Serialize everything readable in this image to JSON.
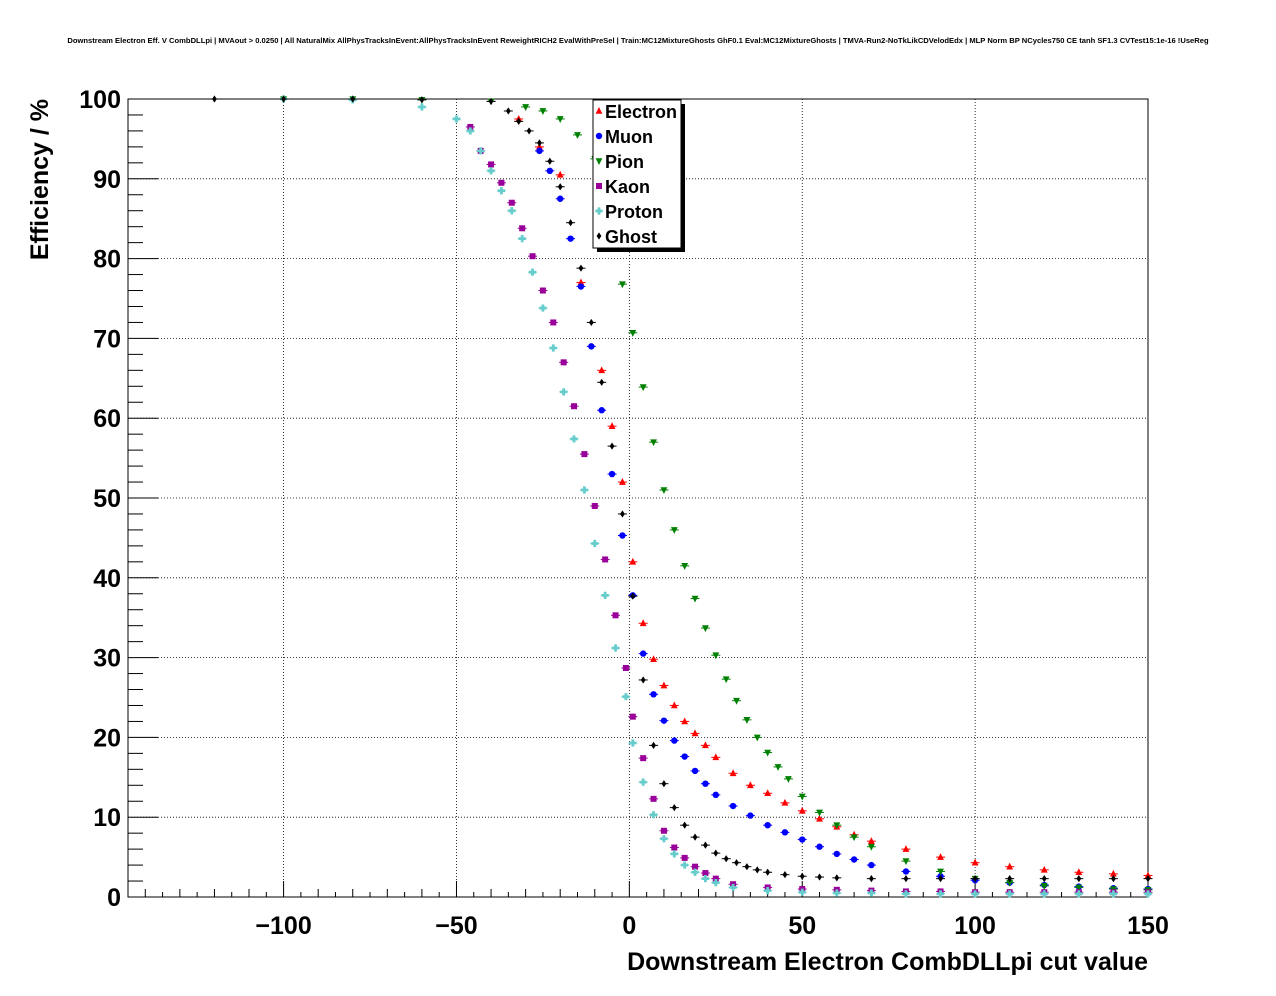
{
  "chart_data": {
    "type": "scatter",
    "title": "Downstream Electron Eff. V CombDLLpi | MVAout > 0.0250 | All NaturalMix AllPhysTracksInEvent:AllPhysTracksInEvent ReweightRICH2 EvalWithPreSel | Train:MC12MixtureGhosts GhF0.1 Eval:MC12MixtureGhosts | TMVA-Run2-NoTkLikCDVelodEdx | MLP Norm BP NCycles750 CE tanh SF1.3 CVTest15:1e-16 !UseReg",
    "xlabel": "Downstream Electron CombDLLpi cut value",
    "ylabel": "Efficiency / %",
    "xlim": [
      -145,
      150
    ],
    "ylim": [
      0,
      100
    ],
    "xticks": [
      -100,
      -50,
      0,
      50,
      100,
      150
    ],
    "xtick_labels": [
      "−100",
      "−50",
      "0",
      "50",
      "100",
      "150"
    ],
    "yticks": [
      0,
      10,
      20,
      30,
      40,
      50,
      60,
      70,
      80,
      90,
      100
    ],
    "ytick_labels": [
      "0",
      "10",
      "20",
      "30",
      "40",
      "50",
      "60",
      "70",
      "80",
      "90",
      "100"
    ],
    "grid": true,
    "legend_position": "top-center",
    "series": [
      {
        "name": "Electron",
        "color": "#ff0000",
        "marker": "triangle-up",
        "x": [
          -32,
          -26,
          -20,
          -14,
          -8,
          -5,
          -2,
          1,
          4,
          7,
          10,
          13,
          16,
          19,
          22,
          25,
          30,
          35,
          40,
          45,
          50,
          55,
          60,
          65,
          70,
          80,
          90,
          100,
          110,
          120,
          130,
          140,
          150
        ],
        "y": [
          97.5,
          94,
          90.5,
          77,
          66,
          59,
          52,
          42,
          34.3,
          29.8,
          26.5,
          24,
          22,
          20.5,
          19,
          17.5,
          15.5,
          14,
          13,
          11.8,
          10.8,
          9.8,
          8.8,
          7.8,
          7,
          6,
          5,
          4.3,
          3.8,
          3.4,
          3.1,
          2.9,
          2.7
        ]
      },
      {
        "name": "Muon",
        "color": "#0000ff",
        "marker": "circle",
        "x": [
          -26,
          -23,
          -20,
          -17,
          -14,
          -11,
          -8,
          -5,
          -2,
          1,
          4,
          7,
          10,
          13,
          16,
          19,
          22,
          25,
          30,
          35,
          40,
          45,
          50,
          55,
          60,
          65,
          70,
          80,
          90,
          100,
          110,
          120,
          130,
          140,
          150
        ],
        "y": [
          93.5,
          91,
          87.5,
          82.5,
          76.5,
          69,
          61,
          53,
          45.3,
          37.8,
          30.5,
          25.4,
          22.1,
          19.6,
          17.6,
          15.8,
          14.2,
          12.8,
          11.4,
          10.2,
          9,
          8.1,
          7.2,
          6.3,
          5.4,
          4.7,
          4,
          3.2,
          2.6,
          2.1,
          1.8,
          1.5,
          1.3,
          1.1,
          1
        ]
      },
      {
        "name": "Pion",
        "color": "#008000",
        "marker": "triangle-down",
        "x": [
          -100,
          -80,
          -60,
          -40,
          -30,
          -25,
          -20,
          -15,
          -10,
          -2,
          1,
          4,
          7,
          10,
          13,
          16,
          19,
          22,
          25,
          28,
          31,
          34,
          37,
          40,
          43,
          46,
          50,
          55,
          60,
          65,
          70,
          80,
          90,
          100,
          110,
          120,
          130,
          140,
          150
        ],
        "y": [
          100,
          100,
          99.9,
          99.7,
          99,
          98.5,
          97.5,
          95.5,
          92.5,
          76.8,
          70.7,
          63.9,
          57,
          51,
          46,
          41.5,
          37.4,
          33.7,
          30.3,
          27.3,
          24.6,
          22.2,
          20,
          18.1,
          16.3,
          14.8,
          12.6,
          10.6,
          9,
          7.5,
          6.3,
          4.5,
          3.2,
          2.3,
          1.8,
          1.4,
          1.2,
          1,
          0.9
        ]
      },
      {
        "name": "Kaon",
        "color": "#990099",
        "marker": "square",
        "x": [
          -46,
          -43,
          -40,
          -37,
          -34,
          -31,
          -28,
          -25,
          -22,
          -19,
          -16,
          -13,
          -10,
          -7,
          -4,
          -1,
          1,
          4,
          7,
          10,
          13,
          16,
          19,
          22,
          25,
          30,
          40,
          50,
          60,
          70,
          80,
          90,
          100,
          110,
          120,
          130,
          140,
          150
        ],
        "y": [
          96.5,
          93.5,
          91.8,
          89.5,
          87,
          83.8,
          80.3,
          76,
          72,
          67,
          61.5,
          55.5,
          49,
          42.3,
          35.3,
          28.7,
          22.6,
          17.4,
          12.3,
          8.3,
          6.2,
          4.9,
          3.8,
          3,
          2.3,
          1.6,
          1.2,
          1,
          0.9,
          0.8,
          0.7,
          0.7,
          0.6,
          0.6,
          0.6,
          0.6,
          0.6,
          0.6
        ]
      },
      {
        "name": "Proton",
        "color": "#66cccc",
        "marker": "cross",
        "x": [
          -100,
          -80,
          -60,
          -50,
          -46,
          -43,
          -40,
          -37,
          -34,
          -31,
          -28,
          -25,
          -22,
          -19,
          -16,
          -13,
          -10,
          -7,
          -4,
          -1,
          1,
          4,
          7,
          10,
          13,
          16,
          19,
          22,
          25,
          30,
          40,
          50,
          60,
          70,
          80,
          90,
          100,
          110,
          120,
          130,
          140,
          150
        ],
        "y": [
          100,
          99.9,
          99,
          97.5,
          96,
          93.5,
          91,
          88.5,
          86,
          82.5,
          78.3,
          73.8,
          68.8,
          63.3,
          57.4,
          51,
          44.3,
          37.8,
          31.2,
          25.1,
          19.3,
          14.4,
          10.3,
          7.3,
          5.4,
          4,
          3.1,
          2.3,
          1.8,
          1.2,
          0.8,
          0.6,
          0.5,
          0.5,
          0.4,
          0.4,
          0.4,
          0.4,
          0.4,
          0.4,
          0.4,
          0.4
        ]
      },
      {
        "name": "Ghost",
        "color": "#000000",
        "marker": "diamond",
        "x": [
          -120,
          -100,
          -80,
          -60,
          -40,
          -35,
          -32,
          -29,
          -26,
          -23,
          -20,
          -17,
          -14,
          -11,
          -8,
          -5,
          -2,
          1,
          4,
          7,
          10,
          13,
          16,
          19,
          22,
          25,
          28,
          31,
          34,
          37,
          40,
          45,
          50,
          55,
          60,
          70,
          80,
          90,
          100,
          110,
          120,
          130,
          140,
          150
        ],
        "y": [
          100,
          100,
          100,
          99.9,
          99.7,
          98.5,
          97.2,
          96,
          94.5,
          92.2,
          89,
          84.5,
          78.8,
          72,
          64.5,
          56.5,
          48,
          37.7,
          27.2,
          19,
          14.2,
          11.2,
          9,
          7.5,
          6.5,
          5.5,
          4.8,
          4.3,
          3.8,
          3.4,
          3.1,
          2.8,
          2.6,
          2.5,
          2.4,
          2.3,
          2.3,
          2.3,
          2.3,
          2.3,
          2.3,
          2.3,
          2.3,
          2.3
        ]
      }
    ]
  }
}
